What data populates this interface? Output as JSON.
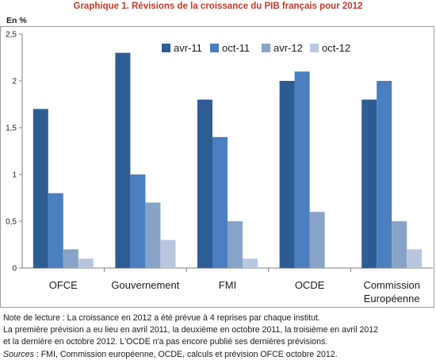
{
  "title": "Graphique 1. Révisions de la croissance du PIB français pour 2012",
  "unit_label": "En %",
  "colors": {
    "title": "#c0392b",
    "series": [
      "#2e5d94",
      "#4a7fc0",
      "#88a3c8",
      "#b8c7de"
    ]
  },
  "chart_data": {
    "type": "bar",
    "categories": [
      "OFCE",
      "Gouvernement",
      "FMI",
      "OCDE",
      "Commission\nEuropéenne"
    ],
    "series": [
      {
        "name": "avr-11",
        "values": [
          1.7,
          2.3,
          1.8,
          2.0,
          1.8
        ]
      },
      {
        "name": "oct-11",
        "values": [
          0.8,
          1.0,
          1.4,
          2.1,
          2.0
        ]
      },
      {
        "name": "avr-12",
        "values": [
          0.2,
          0.7,
          0.5,
          0.6,
          0.5
        ]
      },
      {
        "name": "oct-12",
        "values": [
          0.1,
          0.3,
          0.1,
          null,
          0.2
        ]
      }
    ],
    "ylim": [
      0,
      2.5
    ],
    "yticks": [
      0,
      0.5,
      1,
      1.5,
      2,
      2.5
    ],
    "ytick_labels": [
      "0",
      "0,5",
      "1",
      "1,5",
      "2",
      "2,5"
    ],
    "grid": false,
    "legend_position": "top-right"
  },
  "notes": {
    "line1": "Note de lecture : La croissance en 2012 a été prévue à 4 reprises par chaque institut.",
    "line2": "La première prévision a eu lieu en avril 2011, la deuxième en octobre 2011, la troisième en avril 2012",
    "line3": "et la dernière en octobre 2012. L'OCDE n'a pas encore publié ses dernières prévisions.",
    "sources_label": "Sources",
    "sources_text": " : FMI, Commission européenne, OCDE, calculs et prévision OFCE octobre 2012."
  }
}
